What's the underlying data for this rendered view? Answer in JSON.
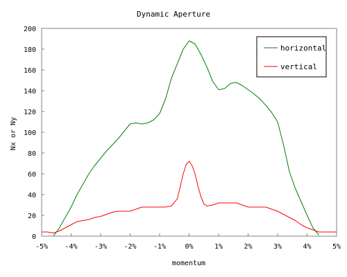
{
  "chart_data": {
    "type": "line",
    "title": "Dynamic Aperture",
    "xlabel": "momentum",
    "ylabel": "Nx or Ny",
    "xlim": [
      -5,
      5
    ],
    "ylim": [
      0,
      200
    ],
    "x_ticks": [
      -5,
      -4,
      -3,
      -2,
      -1,
      0,
      1,
      2,
      3,
      4,
      5
    ],
    "x_tick_labels": [
      "-5%",
      "-4%",
      "-3%",
      "-2%",
      "-1%",
      "0%",
      "1%",
      "2%",
      "3%",
      "4%",
      "5%"
    ],
    "y_ticks": [
      0,
      20,
      40,
      60,
      80,
      100,
      120,
      140,
      160,
      180,
      200
    ],
    "y_tick_labels": [
      "0",
      "20",
      "40",
      "60",
      "80",
      "100",
      "120",
      "140",
      "160",
      "180",
      "200"
    ],
    "grid": false,
    "legend": "top-right",
    "series": [
      {
        "name": "horizontal",
        "color": "#008000",
        "points": [
          [
            -4.6,
            0
          ],
          [
            -4.4,
            8
          ],
          [
            -4.2,
            18
          ],
          [
            -4.0,
            28
          ],
          [
            -3.8,
            40
          ],
          [
            -3.6,
            50
          ],
          [
            -3.4,
            60
          ],
          [
            -3.2,
            68
          ],
          [
            -3.0,
            75
          ],
          [
            -2.8,
            82
          ],
          [
            -2.6,
            88
          ],
          [
            -2.4,
            94
          ],
          [
            -2.2,
            101
          ],
          [
            -2.0,
            108
          ],
          [
            -1.8,
            109
          ],
          [
            -1.6,
            108
          ],
          [
            -1.4,
            109
          ],
          [
            -1.2,
            112
          ],
          [
            -1.0,
            118
          ],
          [
            -0.8,
            132
          ],
          [
            -0.6,
            152
          ],
          [
            -0.4,
            166
          ],
          [
            -0.2,
            180
          ],
          [
            0.0,
            188
          ],
          [
            0.2,
            185
          ],
          [
            0.4,
            175
          ],
          [
            0.6,
            163
          ],
          [
            0.8,
            149
          ],
          [
            1.0,
            141
          ],
          [
            1.2,
            142
          ],
          [
            1.4,
            147
          ],
          [
            1.6,
            148
          ],
          [
            1.8,
            145
          ],
          [
            2.0,
            141
          ],
          [
            2.2,
            137
          ],
          [
            2.4,
            132
          ],
          [
            2.6,
            126
          ],
          [
            2.8,
            119
          ],
          [
            3.0,
            110
          ],
          [
            3.2,
            88
          ],
          [
            3.4,
            62
          ],
          [
            3.6,
            46
          ],
          [
            3.8,
            33
          ],
          [
            4.0,
            20
          ],
          [
            4.2,
            8
          ],
          [
            4.4,
            1
          ]
        ]
      },
      {
        "name": "vertical",
        "color": "#ff0000",
        "points": [
          [
            -5.0,
            4
          ],
          [
            -4.8,
            4
          ],
          [
            -4.6,
            3
          ],
          [
            -4.4,
            5
          ],
          [
            -4.2,
            8
          ],
          [
            -4.0,
            11
          ],
          [
            -3.8,
            14
          ],
          [
            -3.6,
            15
          ],
          [
            -3.4,
            16
          ],
          [
            -3.2,
            18
          ],
          [
            -3.0,
            19
          ],
          [
            -2.8,
            21
          ],
          [
            -2.6,
            23
          ],
          [
            -2.4,
            24
          ],
          [
            -2.2,
            24
          ],
          [
            -2.0,
            24
          ],
          [
            -1.8,
            26
          ],
          [
            -1.6,
            28
          ],
          [
            -1.4,
            28
          ],
          [
            -1.2,
            28
          ],
          [
            -1.0,
            28
          ],
          [
            -0.8,
            28
          ],
          [
            -0.6,
            29
          ],
          [
            -0.4,
            36
          ],
          [
            -0.3,
            48
          ],
          [
            -0.2,
            60
          ],
          [
            -0.1,
            69
          ],
          [
            0.0,
            72
          ],
          [
            0.1,
            68
          ],
          [
            0.2,
            60
          ],
          [
            0.3,
            48
          ],
          [
            0.4,
            38
          ],
          [
            0.5,
            31
          ],
          [
            0.6,
            29
          ],
          [
            0.8,
            30
          ],
          [
            1.0,
            32
          ],
          [
            1.2,
            32
          ],
          [
            1.4,
            32
          ],
          [
            1.6,
            32
          ],
          [
            1.8,
            30
          ],
          [
            2.0,
            28
          ],
          [
            2.2,
            28
          ],
          [
            2.4,
            28
          ],
          [
            2.6,
            28
          ],
          [
            2.8,
            26
          ],
          [
            3.0,
            24
          ],
          [
            3.2,
            21
          ],
          [
            3.4,
            18
          ],
          [
            3.6,
            15
          ],
          [
            3.8,
            11
          ],
          [
            4.0,
            8
          ],
          [
            4.2,
            6
          ],
          [
            4.4,
            4
          ],
          [
            4.6,
            4
          ],
          [
            4.8,
            4
          ],
          [
            5.0,
            4
          ]
        ]
      }
    ]
  }
}
